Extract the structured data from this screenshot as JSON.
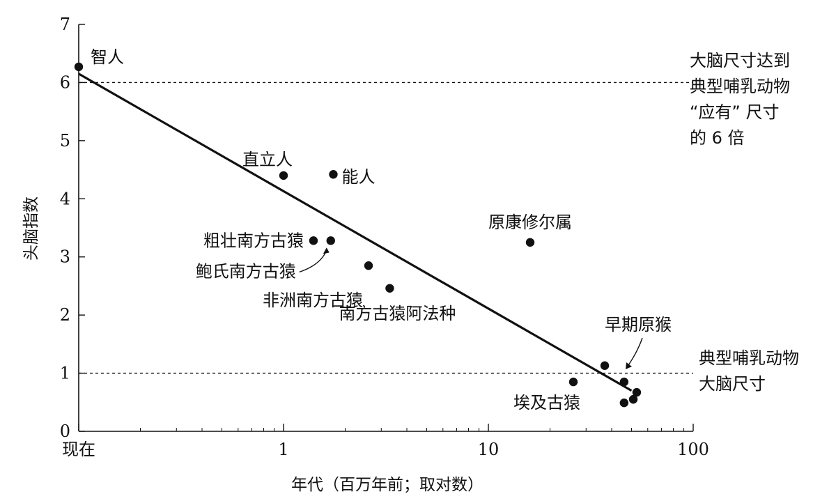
{
  "chart_data": {
    "type": "scatter",
    "x_scale": "log",
    "xlabel": "年代（百万年前；取对数）",
    "ylabel": "头脑指数",
    "ylim": [
      0,
      7
    ],
    "xlim": [
      0.1,
      100
    ],
    "x_ticks": [
      {
        "value": 0.1,
        "label": "现在"
      },
      {
        "value": 1,
        "label": "1"
      },
      {
        "value": 10,
        "label": "10"
      },
      {
        "value": 100,
        "label": "100"
      }
    ],
    "y_ticks": [
      {
        "value": 0,
        "label": "0"
      },
      {
        "value": 1,
        "label": "1"
      },
      {
        "value": 2,
        "label": "2"
      },
      {
        "value": 3,
        "label": "3"
      },
      {
        "value": 4,
        "label": "4"
      },
      {
        "value": 5,
        "label": "5"
      },
      {
        "value": 6,
        "label": "6"
      },
      {
        "value": 7,
        "label": "7"
      }
    ],
    "points": [
      {
        "label": "智人",
        "x": 0.1,
        "y": 6.27
      },
      {
        "label": "直立人",
        "x": 1.0,
        "y": 4.4
      },
      {
        "label": "能人",
        "x": 1.75,
        "y": 4.42
      },
      {
        "label": "粗壮南方古猿",
        "x": 1.4,
        "y": 3.28
      },
      {
        "label": "鲍氏南方古猿",
        "x": 1.7,
        "y": 3.28
      },
      {
        "label": "非洲南方古猿",
        "x": 2.6,
        "y": 2.85
      },
      {
        "label": "南方古猿阿法种",
        "x": 3.3,
        "y": 2.46
      },
      {
        "label": "原康修尔属",
        "x": 16,
        "y": 3.25
      },
      {
        "label": "埃及古猿",
        "x": 26,
        "y": 0.85
      },
      {
        "label": "",
        "x": 37,
        "y": 1.13
      },
      {
        "label": "",
        "x": 46,
        "y": 0.85
      },
      {
        "label": "",
        "x": 46,
        "y": 0.49
      },
      {
        "label": "",
        "x": 51,
        "y": 0.55
      },
      {
        "label": "",
        "x": 53,
        "y": 0.67
      }
    ],
    "trend_line": {
      "x": [
        0.1,
        50
      ],
      "y": [
        6.15,
        0.7
      ]
    },
    "reference_lines": [
      {
        "y": 6,
        "style": "dotted",
        "label": [
          "大脑尺寸达到",
          "典型哺乳动物",
          "“应有”  尺寸",
          "的 6 倍"
        ]
      },
      {
        "y": 1,
        "style": "dotted",
        "label": [
          "典型哺乳动物",
          "大脑尺寸"
        ]
      }
    ],
    "annotations": [
      {
        "text": "早期原猴"
      }
    ],
    "grid": false,
    "legend": "none"
  }
}
